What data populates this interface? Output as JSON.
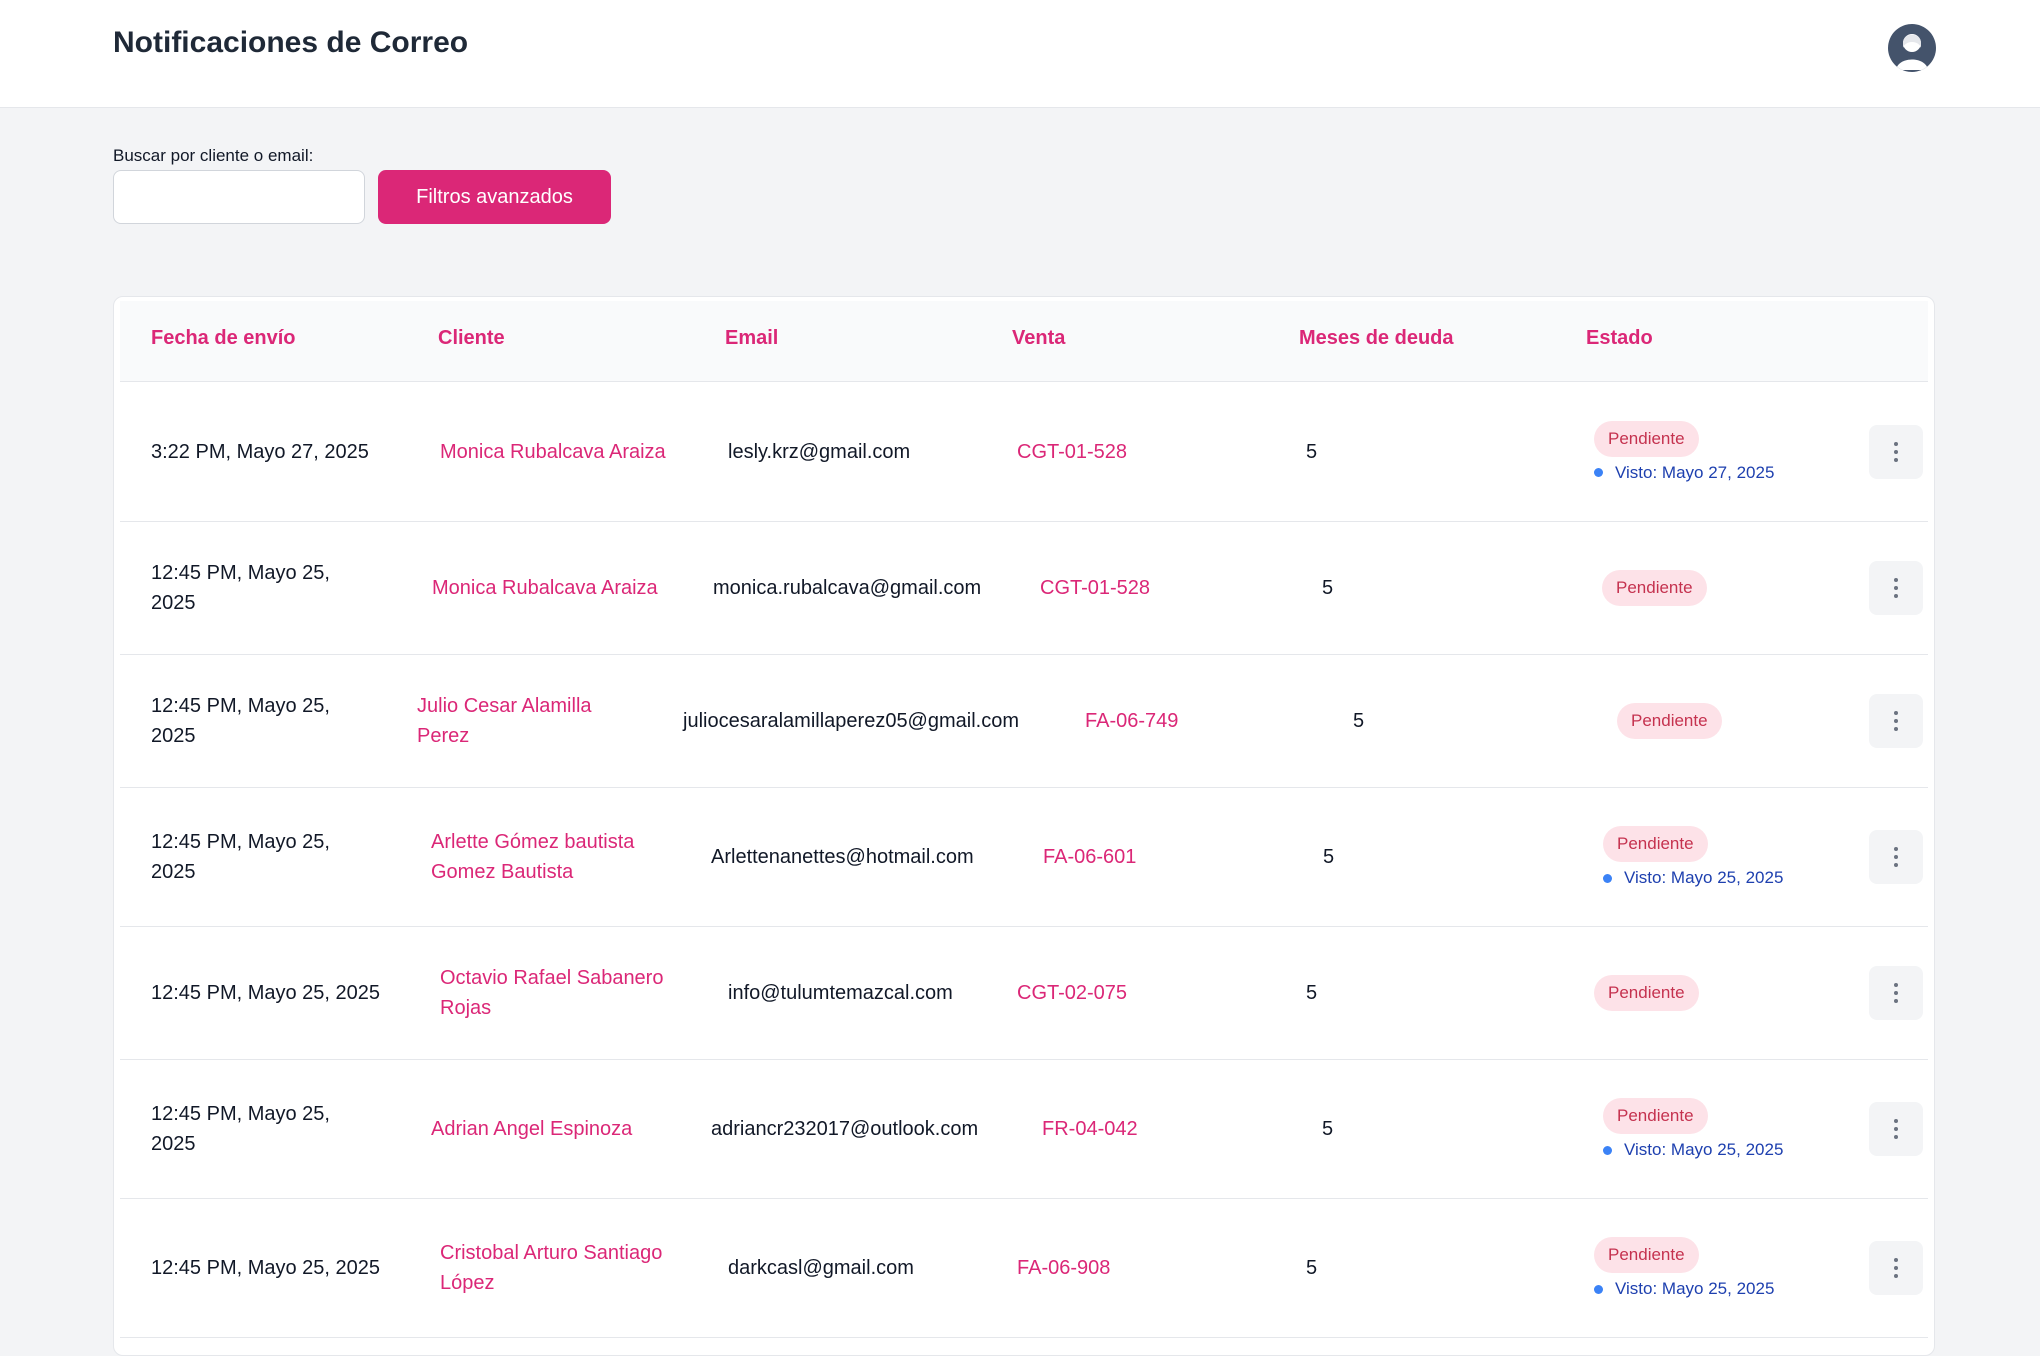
{
  "header": {
    "title": "Notificaciones de Correo"
  },
  "search": {
    "label": "Buscar por cliente o email:",
    "value": "",
    "placeholder": "",
    "filter_button": "Filtros avanzados"
  },
  "table": {
    "columns": {
      "date": "Fecha de envío",
      "client": "Cliente",
      "email": "Email",
      "sale": "Venta",
      "months": "Meses de deuda",
      "status": "Estado"
    },
    "rows": [
      {
        "date": "3:22 PM, Mayo 27, 2025",
        "client": "Monica Rubalcava Araiza",
        "email": "lesly.krz@gmail.com",
        "sale": "CGT-01-528",
        "months": "5",
        "status": "Pendiente",
        "seen": "Visto: Mayo 27, 2025"
      },
      {
        "date": "12:45 PM, Mayo 25, 2025",
        "client": "Monica Rubalcava Araiza",
        "email": "monica.rubalcava@gmail.com",
        "sale": "CGT-01-528",
        "months": "5",
        "status": "Pendiente",
        "seen": ""
      },
      {
        "date": "12:45 PM, Mayo 25, 2025",
        "client": "Julio Cesar Alamilla Perez",
        "email": "juliocesaralamillaperez05@gmail.com",
        "sale": "FA-06-749",
        "months": "5",
        "status": "Pendiente",
        "seen": ""
      },
      {
        "date": "12:45 PM, Mayo 25, 2025",
        "client": "Arlette Gómez bautista Gomez Bautista",
        "email": "Arlettenanettes@hotmail.com",
        "sale": "FA-06-601",
        "months": "5",
        "status": "Pendiente",
        "seen": "Visto: Mayo 25, 2025"
      },
      {
        "date": "12:45 PM, Mayo 25, 2025",
        "client": "Octavio Rafael Sabanero Rojas",
        "email": "info@tulumtemazcal.com",
        "sale": "CGT-02-075",
        "months": "5",
        "status": "Pendiente",
        "seen": ""
      },
      {
        "date": "12:45 PM, Mayo 25, 2025",
        "client": "Adrian Angel Espinoza",
        "email": "adriancr232017@outlook.com",
        "sale": "FR-04-042",
        "months": "5",
        "status": "Pendiente",
        "seen": "Visto: Mayo 25, 2025"
      },
      {
        "date": "12:45 PM, Mayo 25, 2025",
        "client": "Cristobal Arturo Santiago López",
        "email": "darkcasl@gmail.com",
        "sale": "FA-06-908",
        "months": "5",
        "status": "Pendiente",
        "seen": "Visto: Mayo 25, 2025"
      }
    ]
  }
}
